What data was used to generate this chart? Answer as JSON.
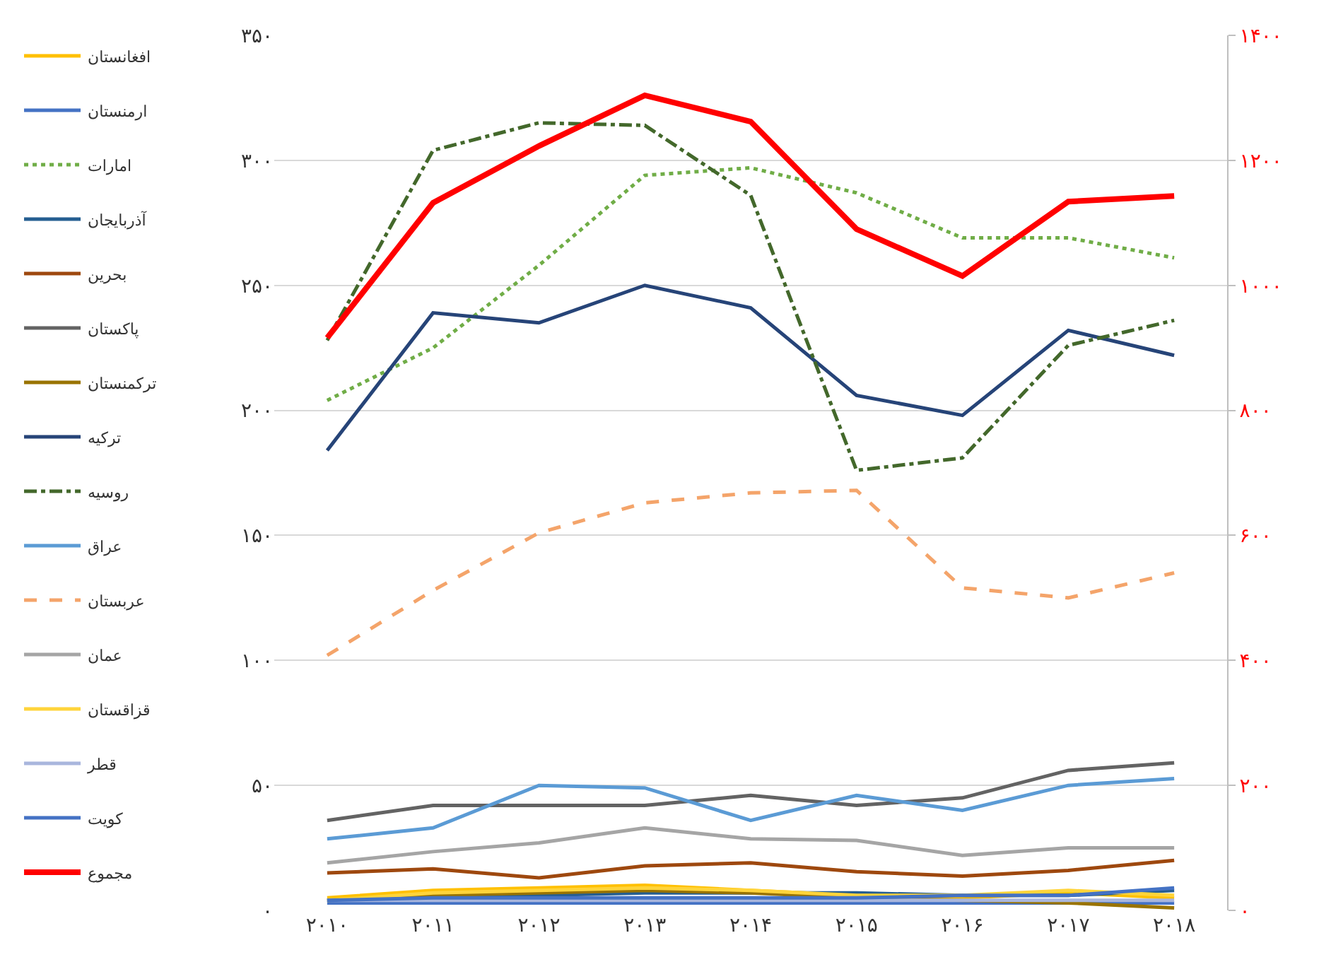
{
  "chart_data": {
    "type": "line",
    "categories": [
      "۲۰۱۰",
      "۲۰۱۱",
      "۲۰۱۲",
      "۲۰۱۳",
      "۲۰۱۴",
      "۲۰۱۵",
      "۲۰۱۶",
      "۲۰۱۷",
      "۲۰۱۸"
    ],
    "series": [
      {
        "name": "افغانستان",
        "color": "#ffc000",
        "line_style": "solid",
        "values": [
          5,
          8,
          9,
          10,
          8,
          6,
          5,
          7,
          5
        ]
      },
      {
        "name": "ارمنستان",
        "color": "#4472c4",
        "line_style": "solid",
        "values": [
          3,
          3,
          3,
          3,
          3,
          3,
          3,
          3,
          3
        ]
      },
      {
        "name": "امارات",
        "color": "#70ad47",
        "line_style": "dotted",
        "values": [
          204,
          225,
          258,
          294,
          297,
          287,
          269,
          269,
          261
        ]
      },
      {
        "name": "آذربایجان",
        "color": "#255e91",
        "line_style": "solid",
        "values": [
          4,
          5,
          6,
          7,
          7,
          7,
          6,
          6,
          8
        ]
      },
      {
        "name": "بحرین",
        "color": "#9e480e",
        "line_style": "solid",
        "values": [
          15,
          16.6,
          13,
          17.8,
          19,
          15.5,
          13.7,
          16,
          20
        ]
      },
      {
        "name": "پاکستان",
        "color": "#636363",
        "line_style": "solid",
        "values": [
          36,
          42,
          42,
          42,
          46,
          42,
          45,
          56,
          59
        ]
      },
      {
        "name": "ترکمنستان",
        "color": "#997300",
        "line_style": "solid",
        "values": [
          4,
          6,
          7,
          8,
          7,
          5,
          4,
          3,
          1
        ]
      },
      {
        "name": "ترکیه",
        "color": "#264478",
        "line_style": "solid",
        "values": [
          184,
          239,
          235,
          250,
          241,
          206,
          198,
          232,
          222
        ]
      },
      {
        "name": "روسیه",
        "color": "#43682b",
        "line_style": "dashdot",
        "values": [
          228,
          304,
          315,
          314,
          286,
          176,
          181,
          226,
          236
        ]
      },
      {
        "name": "عراق",
        "color": "#5b9bd5",
        "line_style": "solid",
        "values": [
          28.6,
          33,
          50,
          49,
          36,
          46,
          40,
          50,
          52.7
        ]
      },
      {
        "name": "عربستان",
        "color": "#f4a46a",
        "line_style": "dashed",
        "values": [
          102,
          128,
          151,
          163,
          167,
          168,
          129,
          125,
          135
        ]
      },
      {
        "name": "عمان",
        "color": "#a5a5a5",
        "line_style": "solid",
        "values": [
          19,
          23.5,
          27,
          33,
          28.6,
          28,
          22,
          25,
          25
        ]
      },
      {
        "name": "قزاقستان",
        "color": "#ffd43b",
        "line_style": "solid",
        "values": [
          4,
          7,
          8,
          9,
          8,
          6,
          6,
          8,
          6
        ]
      },
      {
        "name": "قطر",
        "color": "#a9b6dd",
        "line_style": "solid",
        "values": [
          4,
          4,
          4,
          4,
          4,
          4,
          4,
          4,
          4
        ]
      },
      {
        "name": "کویت",
        "color": "#4472c4",
        "line_style": "solid",
        "values": [
          4,
          5,
          5,
          5,
          5,
          5,
          6,
          6,
          9
        ]
      },
      {
        "name": "مجموع",
        "color": "#ff0000",
        "line_style": "solid",
        "axis": "y2",
        "values": [
          916,
          1132,
          1223,
          1304,
          1262,
          1090,
          1015,
          1134,
          1143
        ]
      }
    ],
    "ylim": [
      0,
      350
    ],
    "yticks": [
      {
        "value": 0,
        "label": "۰"
      },
      {
        "value": 50,
        "label": "۵۰"
      },
      {
        "value": 100,
        "label": "۱۰۰"
      },
      {
        "value": 150,
        "label": "۱۵۰"
      },
      {
        "value": 200,
        "label": "۲۰۰"
      },
      {
        "value": 250,
        "label": "۲۵۰"
      },
      {
        "value": 300,
        "label": "۳۰۰"
      },
      {
        "value": 350,
        "label": "۳۵۰"
      }
    ],
    "y2lim": [
      0,
      1400
    ],
    "y2ticks": [
      {
        "value": 0,
        "label": "۰"
      },
      {
        "value": 200,
        "label": "۲۰۰"
      },
      {
        "value": 400,
        "label": "۴۰۰"
      },
      {
        "value": 600,
        "label": "۶۰۰"
      },
      {
        "value": 800,
        "label": "۸۰۰"
      },
      {
        "value": 1000,
        "label": "۱۰۰۰"
      },
      {
        "value": 1200,
        "label": "۱۲۰۰"
      },
      {
        "value": 1400,
        "label": "۱۴۰۰"
      }
    ],
    "grid": "y",
    "legend": "left",
    "marker": "none"
  }
}
